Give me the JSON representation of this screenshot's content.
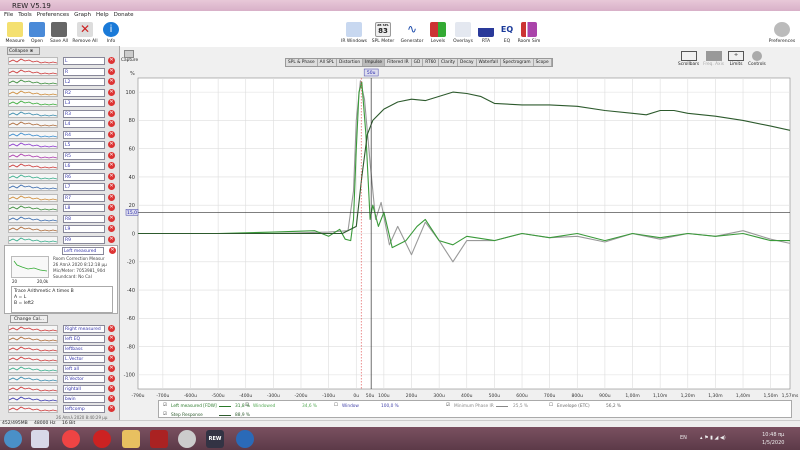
{
  "app": {
    "title": "REW V5.19"
  },
  "menu": [
    "File",
    "Tools",
    "Preferences",
    "Graph",
    "Help",
    "Donate"
  ],
  "toolbar_left": [
    "Measure",
    "Open",
    "Save All",
    "Remove All",
    "Info"
  ],
  "toolbar_center": [
    "IR Windows",
    "SPL Meter",
    "Generator",
    "Levels",
    "Overlays",
    "RTA",
    "EQ",
    "Room Sim"
  ],
  "spl_meter_value": "83",
  "spl_meter_label": "dB SPL",
  "toolbar_right": "Preferences",
  "graph_tools": [
    "Scrollbars",
    "Freq. Axis",
    "Limits",
    "Controls"
  ],
  "capture": "Capture",
  "collapse": "Collapse",
  "tabs": [
    "SPL & Phase",
    "All SPL",
    "Distortion",
    "Impulse",
    "Filtered IR",
    "GD",
    "RT60",
    "Clarity",
    "Decay",
    "Waterfall",
    "Spectrogram",
    "Scope"
  ],
  "active_tab": "Impulse",
  "traces_top": [
    "L",
    "R",
    "L2",
    "R2",
    "L3",
    "R3",
    "L4",
    "R4",
    "L5",
    "R5",
    "L6",
    "R6",
    "L7",
    "R7",
    "L8",
    "R8",
    "L9",
    "R9"
  ],
  "selected": {
    "name": "Left measured",
    "line1": "Room Correction Measur",
    "line2": "26 Aπrιλ 2020 8:12:18 μμ",
    "line3": "Mic/Meter: 7053981_90d",
    "line4": "Soundcard: No Cal",
    "x_start": "20",
    "x_end": "20,0k",
    "notes": [
      "Trace Arithmetic A times B",
      "A = L",
      "B = left2"
    ],
    "button": "Change Cal..."
  },
  "traces_bottom": [
    "Right measured",
    "left EQ",
    "leftbass",
    "L.Vector",
    "left all",
    "R.Vector",
    "rightall",
    "bwin",
    "leftcomp"
  ],
  "last_row_date": "26 Aπrιλ 2020 8:40:29 μμ",
  "status": {
    "memory": "452/495MB",
    "rate": "48000 Hz",
    "bits": "16 Bit"
  },
  "taskbar": {
    "lang": "EN",
    "time": "10:48 πμ",
    "date": "1/5/2020"
  },
  "chart_data": {
    "type": "line",
    "ylabel": "%",
    "xlim": [
      -0.79,
      1.57
    ],
    "ylim": [
      -110,
      110
    ],
    "yticks": [
      100,
      80,
      60,
      40,
      20,
      0,
      -20,
      -40,
      -60,
      -80,
      -100
    ],
    "xticks": [
      "-790u",
      "-700u",
      "-600u",
      "-500u",
      "-400u",
      "-300u",
      "-200u",
      "-100u",
      "0u",
      "50u",
      "100u",
      "200u",
      "300u",
      "400u",
      "500u",
      "600u",
      "700u",
      "800u",
      "900u",
      "1,00m",
      "1,10m",
      "1,20m",
      "1,30m",
      "1,40m",
      "1,50m",
      "1,57ms"
    ],
    "xtick_values": [
      -0.79,
      -0.7,
      -0.6,
      -0.5,
      -0.4,
      -0.3,
      -0.2,
      -0.1,
      0,
      0.05,
      0.1,
      0.2,
      0.3,
      0.4,
      0.5,
      0.6,
      0.7,
      0.8,
      0.9,
      1.0,
      1.1,
      1.2,
      1.3,
      1.4,
      1.5,
      1.57
    ],
    "grid": true,
    "cursor_y": {
      "label": "15,0",
      "value": 15
    },
    "cursor_x": {
      "label": "50u",
      "value": 0.054
    },
    "window_marker": 0.018,
    "series": [
      {
        "name": "Left measured [FDW]",
        "color": "#3a9a3a",
        "pct": "31,8 %",
        "x": [
          -0.79,
          -0.5,
          -0.3,
          -0.15,
          -0.1,
          -0.06,
          -0.04,
          -0.02,
          -0.01,
          0,
          0.01,
          0.02,
          0.035,
          0.05,
          0.06,
          0.08,
          0.1,
          0.13,
          0.18,
          0.22,
          0.25,
          0.3,
          0.35,
          0.4,
          0.5,
          0.6,
          0.7,
          0.8,
          0.9,
          1.0,
          1.1,
          1.2,
          1.3,
          1.4,
          1.5,
          1.57
        ],
        "y": [
          0,
          0,
          1,
          2,
          -2,
          3,
          -4,
          -5,
          10,
          60,
          100,
          107,
          70,
          10,
          20,
          5,
          15,
          -10,
          -5,
          5,
          10,
          -5,
          -8,
          -2,
          -5,
          0,
          -3,
          0,
          -5,
          0,
          -3,
          0,
          -2,
          0,
          -5,
          -5
        ]
      },
      {
        "name": "Minimum Phase IR",
        "color": "#999999",
        "pct": "25,5 %",
        "x": [
          -0.79,
          -0.3,
          -0.1,
          -0.03,
          -0.01,
          0,
          0.015,
          0.03,
          0.05,
          0.07,
          0.09,
          0.12,
          0.15,
          0.2,
          0.25,
          0.3,
          0.35,
          0.4,
          0.5,
          0.6,
          0.7,
          0.8,
          0.9,
          1.0,
          1.1,
          1.2,
          1.3,
          1.4,
          1.5,
          1.57
        ],
        "y": [
          0,
          0,
          1,
          2,
          30,
          80,
          108,
          95,
          50,
          10,
          22,
          -8,
          5,
          -15,
          8,
          -5,
          -20,
          -5,
          -5,
          0,
          -3,
          -2,
          -6,
          0,
          -4,
          0,
          -2,
          2,
          -4,
          -7
        ]
      },
      {
        "name": "Step Response",
        "color": "#2d5a2d",
        "pct": "88,9 %",
        "x": [
          -0.79,
          -0.05,
          0,
          0.02,
          0.04,
          0.06,
          0.1,
          0.15,
          0.2,
          0.25,
          0.3,
          0.35,
          0.4,
          0.45,
          0.5,
          0.6,
          0.7,
          0.8,
          0.9,
          1.0,
          1.05,
          1.1,
          1.15,
          1.2,
          1.3,
          1.4,
          1.5,
          1.57
        ],
        "y": [
          0,
          0,
          5,
          40,
          70,
          80,
          88,
          93,
          95,
          94,
          97,
          100,
          99,
          97,
          92,
          91,
          91,
          90,
          87,
          85,
          84,
          87,
          87,
          85,
          83,
          80,
          76,
          73
        ]
      }
    ],
    "legend": [
      {
        "label": "Left measured [FDW]",
        "checked": true,
        "pct": "31,8 %"
      },
      {
        "label": "Windowed",
        "checked": false,
        "pct": "34,6 %"
      },
      {
        "label": "Window",
        "checked": false,
        "pct": "100,0 %"
      },
      {
        "label": "Minimum Phase IR",
        "checked": true,
        "pct": "25,5 %"
      },
      {
        "label": "Envelope (ETC)",
        "checked": false,
        "pct": "56,2 %"
      },
      {
        "label": "Step Response",
        "checked": true,
        "pct": "88,9 %"
      }
    ]
  }
}
